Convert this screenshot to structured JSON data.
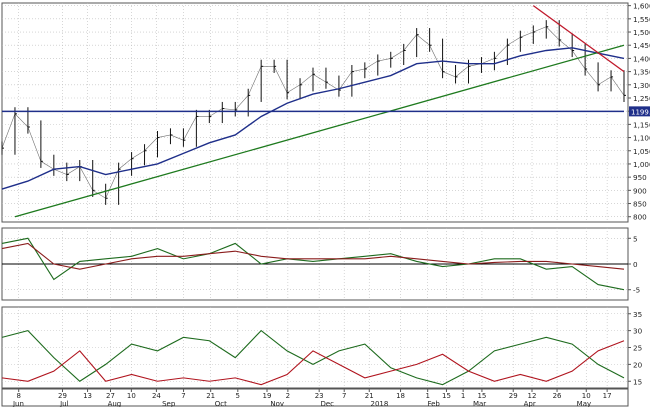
{
  "chart_data": [
    {
      "type": "line",
      "panel": "price",
      "grid": true,
      "ylim": [
        780,
        1610
      ],
      "yticks": [
        800,
        850,
        900,
        950,
        1000,
        1050,
        1100,
        1150,
        1200,
        1250,
        1300,
        1350,
        1400,
        1450,
        1500,
        1550,
        1600
      ],
      "ytick_labels": [
        "800",
        "850",
        "900",
        "950",
        "1,000",
        "1,050",
        "1,100",
        "1,150",
        "1,200",
        "1,250",
        "1,300",
        "1,350",
        "1,400",
        "1,450",
        "1,500",
        "1,550",
        "1,600"
      ],
      "last_value_label": "1199.3",
      "colors": {
        "bars": "#111111",
        "moving_average": "#1f2f8a",
        "support": "#1e7a1e",
        "resistance": "#c0192b",
        "horizontal": "#1f2f8a",
        "label_bg": "#1f2f8a"
      },
      "series": [
        {
          "kind": "close",
          "x": [
            0,
            5,
            10,
            15,
            20,
            25,
            30,
            35,
            40,
            45,
            50,
            55,
            60,
            65,
            70,
            75,
            80,
            85,
            90,
            95,
            100,
            105,
            110,
            115,
            120,
            125,
            130,
            135,
            140,
            145,
            150,
            155,
            160,
            165,
            170,
            175,
            180,
            185,
            190,
            195,
            200,
            205,
            210,
            215,
            220,
            225,
            230,
            235,
            240
          ],
          "values": [
            1060,
            1190,
            1140,
            1010,
            980,
            960,
            990,
            900,
            870,
            980,
            1020,
            1050,
            1100,
            1110,
            1090,
            1180,
            1180,
            1210,
            1205,
            1260,
            1370,
            1370,
            1270,
            1300,
            1340,
            1310,
            1280,
            1350,
            1360,
            1390,
            1400,
            1430,
            1490,
            1450,
            1350,
            1330,
            1370,
            1380,
            1400,
            1450,
            1480,
            1500,
            1520,
            1470,
            1430,
            1360,
            1300,
            1330,
            1260
          ]
        },
        {
          "kind": "moving_average",
          "x": [
            0,
            10,
            20,
            30,
            40,
            50,
            60,
            70,
            80,
            90,
            100,
            110,
            120,
            130,
            140,
            150,
            160,
            170,
            180,
            190,
            200,
            210,
            220,
            230,
            240
          ],
          "values": [
            905,
            935,
            980,
            990,
            960,
            980,
            1000,
            1040,
            1080,
            1110,
            1180,
            1230,
            1265,
            1285,
            1310,
            1335,
            1380,
            1390,
            1380,
            1380,
            1410,
            1430,
            1440,
            1420,
            1400
          ]
        },
        {
          "kind": "support_trendline",
          "x": [
            5,
            240
          ],
          "values": [
            800,
            1450
          ]
        },
        {
          "kind": "resistance_trendline",
          "x": [
            205,
            240
          ],
          "values": [
            1600,
            1350
          ]
        },
        {
          "kind": "horizontal_level",
          "x": [
            0,
            240
          ],
          "values": [
            1199.3,
            1199.3
          ]
        }
      ]
    },
    {
      "type": "line",
      "panel": "oscillator",
      "ylim": [
        -7,
        7
      ],
      "yticks": [
        5,
        0,
        -5
      ],
      "ytick_labels": [
        "5",
        "0",
        "-5"
      ],
      "zero_line": true,
      "colors": {
        "fast": "#1e6b1e",
        "signal": "#8a1c1c"
      },
      "series": [
        {
          "kind": "fast",
          "x": [
            0,
            10,
            20,
            30,
            40,
            50,
            60,
            70,
            80,
            90,
            100,
            110,
            120,
            130,
            140,
            150,
            160,
            170,
            180,
            190,
            200,
            210,
            220,
            230,
            240
          ],
          "values": [
            4,
            5,
            -3,
            0.5,
            1,
            1.5,
            3,
            1,
            2,
            4,
            0,
            1,
            0.5,
            1,
            1.5,
            2,
            0.5,
            -0.5,
            0,
            1,
            1,
            -1,
            -0.5,
            -4,
            -5
          ]
        },
        {
          "kind": "signal",
          "x": [
            0,
            10,
            20,
            30,
            40,
            50,
            60,
            70,
            80,
            90,
            100,
            110,
            120,
            130,
            140,
            150,
            160,
            170,
            180,
            190,
            200,
            210,
            220,
            230,
            240
          ],
          "values": [
            3,
            4,
            0,
            -1,
            0,
            1,
            1.5,
            1.5,
            2,
            2.5,
            1.5,
            1,
            1,
            1,
            1,
            1.5,
            1,
            0.5,
            0,
            0.3,
            0.5,
            0.5,
            0,
            -0.5,
            -1
          ]
        }
      ]
    },
    {
      "type": "line",
      "panel": "directional",
      "ylim": [
        13,
        37
      ],
      "yticks": [
        35,
        30,
        25,
        20,
        15
      ],
      "ytick_labels": [
        "35",
        "30",
        "25",
        "20",
        "15"
      ],
      "colors": {
        "plus": "#1e6b1e",
        "minus": "#b0141e"
      },
      "series": [
        {
          "kind": "plus",
          "x": [
            0,
            10,
            20,
            30,
            40,
            50,
            60,
            70,
            80,
            90,
            100,
            110,
            120,
            130,
            140,
            150,
            160,
            170,
            180,
            190,
            200,
            210,
            220,
            230,
            240
          ],
          "values": [
            28,
            30,
            22,
            15,
            20,
            26,
            24,
            28,
            27,
            22,
            30,
            24,
            20,
            24,
            26,
            19,
            16,
            14,
            18,
            24,
            26,
            28,
            26,
            20,
            16
          ]
        },
        {
          "kind": "minus",
          "x": [
            0,
            10,
            20,
            30,
            40,
            50,
            60,
            70,
            80,
            90,
            100,
            110,
            120,
            130,
            140,
            150,
            160,
            170,
            180,
            190,
            200,
            210,
            220,
            230,
            240
          ],
          "values": [
            16,
            15,
            18,
            24,
            15,
            17,
            15,
            16,
            15,
            16,
            14,
            17,
            24,
            20,
            16,
            18,
            20,
            23,
            18,
            15,
            17,
            15,
            18,
            24,
            27
          ]
        }
      ]
    }
  ],
  "x_axis": {
    "day_labels": [
      "8",
      "29",
      "13",
      "27",
      "10",
      "24",
      "7",
      "21",
      "5",
      "19",
      "2",
      "23",
      "7",
      "21",
      "18",
      "1",
      "15",
      "1",
      "15",
      "29",
      "12",
      "26",
      "10",
      "17"
    ],
    "month_labels": [
      "Jun",
      "Jul",
      "Aug",
      "Sep",
      "Oct",
      "Nov",
      "Dec",
      "2018",
      "Feb",
      "Mar",
      "Apr",
      "May"
    ],
    "day_positions": [
      8,
      29,
      41,
      52,
      62,
      74,
      87,
      100,
      113,
      127,
      137,
      152,
      164,
      176,
      191,
      204,
      213,
      221,
      230,
      245,
      254,
      266,
      280,
      290
    ],
    "month_positions": [
      5,
      27,
      51,
      77,
      102,
      129,
      153,
      178,
      204,
      226,
      250,
      276
    ]
  }
}
